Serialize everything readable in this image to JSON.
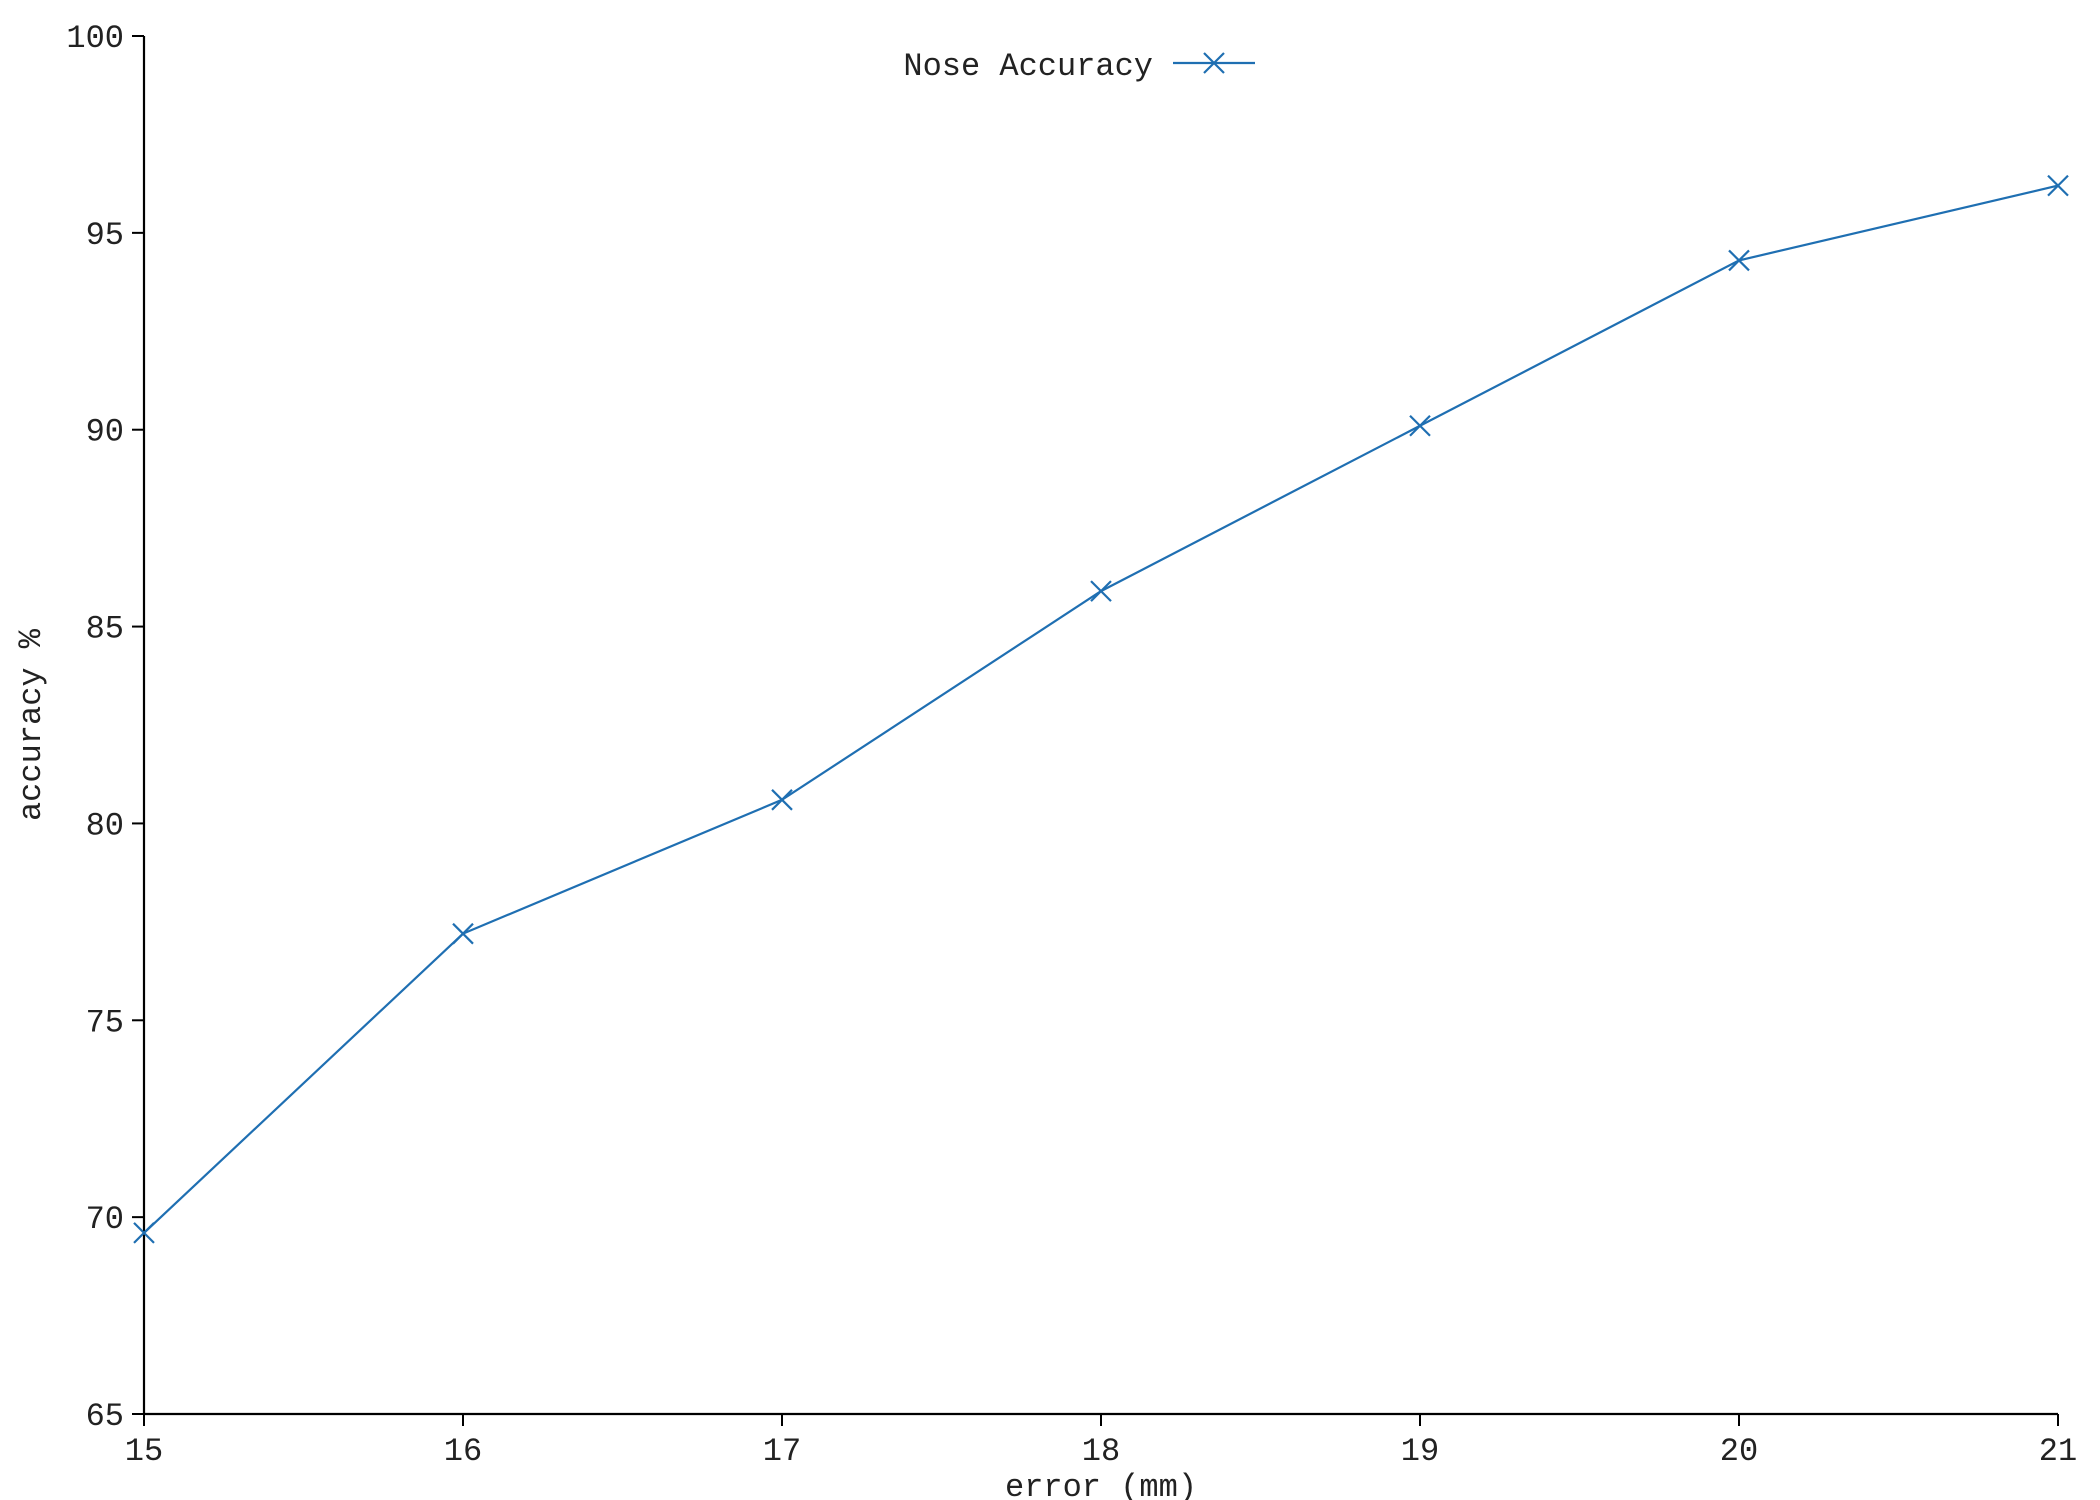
{
  "chart_data": {
    "type": "line",
    "title": "",
    "xlabel": "error (mm)",
    "ylabel": "accuracy %",
    "xlim": [
      15,
      21
    ],
    "ylim": [
      65,
      100
    ],
    "x_ticks": [
      "15",
      "16",
      "17",
      "18",
      "19",
      "20",
      "21"
    ],
    "y_ticks": [
      "65",
      "70",
      "75",
      "80",
      "85",
      "90",
      "95",
      "100"
    ],
    "grid": false,
    "legend_position": "top-center",
    "x": [
      15,
      16,
      17,
      18,
      19,
      20,
      21
    ],
    "series": [
      {
        "name": "Nose Accuracy",
        "color": "#1f6fb2",
        "marker": "x",
        "values": [
          69.6,
          77.2,
          80.6,
          85.9,
          90.1,
          94.3,
          96.2
        ]
      }
    ]
  }
}
